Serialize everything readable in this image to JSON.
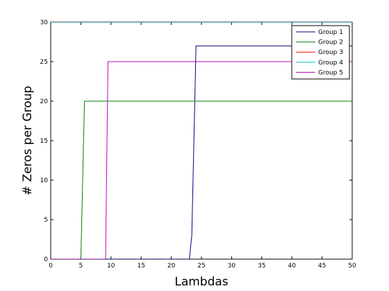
{
  "chart_data": {
    "type": "line",
    "title": "",
    "xlabel": "Lambdas",
    "ylabel": "# Zeros per Group",
    "xlim": [
      0,
      50
    ],
    "ylim": [
      0,
      30
    ],
    "xticks": [
      0,
      5,
      10,
      15,
      20,
      25,
      30,
      35,
      40,
      45,
      50
    ],
    "yticks": [
      0,
      5,
      10,
      15,
      20,
      25,
      30
    ],
    "grid": false,
    "legend_position": "top-right",
    "series": [
      {
        "name": "Group 1",
        "color": "#00007f",
        "x": [
          0,
          23,
          23.4,
          24.1,
          50
        ],
        "y": [
          0,
          0,
          3,
          27,
          27
        ]
      },
      {
        "name": "Group 2",
        "color": "#007f00",
        "x": [
          0,
          5,
          5.6,
          50
        ],
        "y": [
          0,
          0,
          20,
          20
        ]
      },
      {
        "name": "Group 3",
        "color": "#ff0000",
        "x": [
          0,
          50
        ],
        "y": [
          30,
          30
        ]
      },
      {
        "name": "Group 4",
        "color": "#00bfbf",
        "x": [
          0,
          50
        ],
        "y": [
          30,
          30
        ]
      },
      {
        "name": "Group 5",
        "color": "#bf00bf",
        "x": [
          0,
          9.1,
          9.5,
          50
        ],
        "y": [
          0,
          0,
          25,
          25
        ]
      }
    ]
  }
}
